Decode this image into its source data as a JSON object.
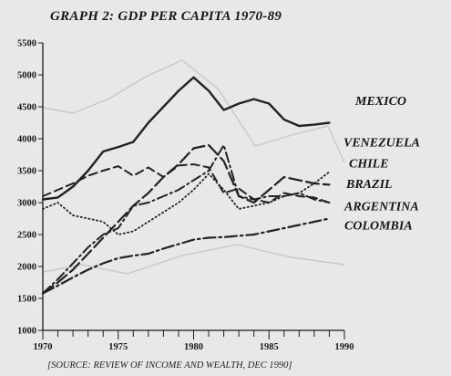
{
  "chart_data": {
    "type": "line",
    "title": "GRAPH 2: GDP PER CAPITA 1970-89",
    "source": "[SOURCE: REVIEW OF INCOME AND WEALTH, DEC 1990]",
    "xlabel": "",
    "ylabel": "",
    "xlim": [
      1970,
      1990
    ],
    "ylim": [
      1000,
      5500
    ],
    "x_ticks": [
      1970,
      1975,
      1980,
      1985,
      1990
    ],
    "y_ticks": [
      1000,
      1500,
      2000,
      2500,
      3000,
      3500,
      4000,
      4500,
      5000,
      5500
    ],
    "grid": false,
    "legend": "inline-right",
    "series": [
      {
        "name": "MEXICO",
        "style": "solid",
        "width": 2.4,
        "x": [
          1970,
          1971,
          1972,
          1973,
          1974,
          1975,
          1976,
          1977,
          1978,
          1979,
          1980,
          1981,
          1982,
          1983,
          1984,
          1985,
          1986,
          1987,
          1988,
          1989
        ],
        "y": [
          3050,
          3080,
          3250,
          3500,
          3800,
          3870,
          3950,
          4250,
          4500,
          4750,
          4960,
          4750,
          4450,
          4550,
          4620,
          4550,
          4300,
          4200,
          4220,
          4250
        ]
      },
      {
        "name": "VENEZUELA",
        "style": "dash",
        "width": 2.0,
        "x": [
          1970,
          1971,
          1972,
          1973,
          1974,
          1975,
          1976,
          1977,
          1978,
          1979,
          1980,
          1981,
          1982,
          1983,
          1984,
          1985,
          1986,
          1987,
          1988,
          1989
        ],
        "y": [
          3100,
          3200,
          3300,
          3420,
          3500,
          3570,
          3420,
          3550,
          3400,
          3580,
          3600,
          3550,
          3150,
          3220,
          3050,
          3000,
          3150,
          3100,
          3080,
          3000
        ]
      },
      {
        "name": "CHILE",
        "style": "dot",
        "width": 1.8,
        "x": [
          1970,
          1971,
          1972,
          1973,
          1974,
          1975,
          1976,
          1977,
          1978,
          1979,
          1980,
          1981,
          1982,
          1983,
          1984,
          1985,
          1986,
          1987,
          1988,
          1989
        ],
        "y": [
          2900,
          3000,
          2800,
          2750,
          2700,
          2500,
          2550,
          2700,
          2850,
          3000,
          3200,
          3450,
          3200,
          2900,
          2950,
          3000,
          3100,
          3150,
          3300,
          3480
        ]
      },
      {
        "name": "BRAZIL",
        "style": "longdash",
        "width": 2.2,
        "x": [
          1970,
          1971,
          1972,
          1973,
          1974,
          1975,
          1976,
          1977,
          1978,
          1979,
          1980,
          1981,
          1982,
          1983,
          1984,
          1985,
          1986,
          1987,
          1988,
          1989
        ],
        "y": [
          1580,
          1750,
          1950,
          2200,
          2450,
          2700,
          2950,
          3150,
          3400,
          3600,
          3850,
          3900,
          3650,
          3100,
          3000,
          3200,
          3400,
          3350,
          3300,
          3280
        ]
      },
      {
        "name": "ARGENTINA",
        "style": "dashdot",
        "width": 2.0,
        "x": [
          1970,
          1971,
          1972,
          1973,
          1974,
          1975,
          1976,
          1977,
          1978,
          1979,
          1980,
          1981,
          1982,
          1983,
          1984,
          1985,
          1986,
          1987,
          1988,
          1989
        ],
        "y": [
          1580,
          1800,
          2050,
          2300,
          2500,
          2600,
          2950,
          3000,
          3100,
          3200,
          3350,
          3500,
          3900,
          3100,
          3050,
          3100,
          3100,
          3150,
          3050,
          3000
        ]
      },
      {
        "name": "COLOMBIA",
        "style": "dashdot2",
        "width": 2.2,
        "x": [
          1970,
          1971,
          1972,
          1973,
          1974,
          1975,
          1976,
          1977,
          1978,
          1979,
          1980,
          1981,
          1982,
          1983,
          1984,
          1985,
          1986,
          1987,
          1988,
          1989
        ],
        "y": [
          1580,
          1700,
          1830,
          1950,
          2050,
          2130,
          2170,
          2200,
          2280,
          2350,
          2420,
          2450,
          2460,
          2480,
          2500,
          2550,
          2600,
          2650,
          2700,
          2750
        ]
      }
    ],
    "label_values": {
      "MEXICO": 4600,
      "VENEZUELA": 3950,
      "CHILE": 3620,
      "BRAZIL": 3300,
      "ARGENTINA": 2950,
      "COLOMBIA": 2650
    }
  }
}
